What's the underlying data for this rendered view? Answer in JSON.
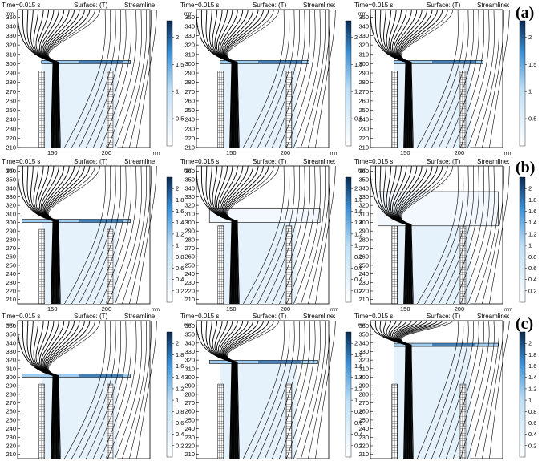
{
  "row_labels": [
    "(a)",
    "(b)",
    "(c)"
  ],
  "header": {
    "time": "Time=0.015 s",
    "surface": "Surface:  (T)",
    "streamline": "Streamline:"
  },
  "axis_units": {
    "x": "mm",
    "y": "mm"
  },
  "colors": {
    "cmap_low": "#ffffff",
    "cmap_mid": "#5aa9e6",
    "cmap_high": "#0a2a4f",
    "frame": "#000000",
    "lines": "#000000"
  },
  "chart_data": [
    {
      "type": "heatmap",
      "row": "(a)",
      "col": 1,
      "title": "",
      "xticks": [
        150,
        200
      ],
      "yticks": [
        210,
        220,
        230,
        240,
        250,
        260,
        270,
        280,
        290,
        300,
        310,
        320,
        330,
        340,
        350
      ],
      "xlim": [
        118,
        240
      ],
      "ylim": [
        210,
        358
      ],
      "colorbar": {
        "ticks": [
          0.5,
          1,
          1.5,
          2
        ],
        "range": [
          0,
          2.3
        ]
      },
      "plate": {
        "y_mm": 300,
        "x_from_mm": 140,
        "x_to_mm": 222
      },
      "legs_to_mm": 292,
      "stream_count": 28
    },
    {
      "type": "heatmap",
      "row": "(a)",
      "col": 2,
      "title": "",
      "xticks": [
        150,
        200
      ],
      "yticks": [
        210,
        220,
        230,
        240,
        250,
        260,
        270,
        280,
        290,
        300,
        310,
        320,
        330,
        340,
        350
      ],
      "xlim": [
        118,
        240
      ],
      "ylim": [
        210,
        358
      ],
      "colorbar": {
        "ticks": [
          0.5,
          1,
          1.5,
          2
        ],
        "range": [
          0,
          2.3
        ]
      },
      "plate": {
        "y_mm": 300,
        "x_from_mm": 140,
        "x_to_mm": 222
      },
      "legs_to_mm": 292,
      "stream_count": 28
    },
    {
      "type": "heatmap",
      "row": "(a)",
      "col": 3,
      "title": "",
      "xticks": [
        150,
        200
      ],
      "yticks": [
        210,
        220,
        230,
        240,
        250,
        260,
        270,
        280,
        290,
        300,
        310,
        320,
        330,
        340,
        350
      ],
      "xlim": [
        118,
        240
      ],
      "ylim": [
        210,
        358
      ],
      "colorbar": {
        "ticks": [
          0.5,
          1,
          1.5,
          2
        ],
        "range": [
          0,
          2.3
        ]
      },
      "plate": {
        "y_mm": 300,
        "x_from_mm": 140,
        "x_to_mm": 222
      },
      "legs_to_mm": 292,
      "stream_count": 28
    },
    {
      "type": "heatmap",
      "row": "(b)",
      "col": 1,
      "title": "",
      "xticks": [
        150,
        200
      ],
      "yticks": [
        210,
        220,
        230,
        240,
        250,
        260,
        270,
        280,
        290,
        300,
        310,
        320,
        330,
        340,
        350,
        360
      ],
      "xlim": [
        118,
        240
      ],
      "ylim": [
        205,
        366
      ],
      "colorbar": {
        "ticks": [
          0.2,
          0.4,
          0.6,
          0.8,
          1,
          1.2,
          1.4,
          1.6,
          1.8,
          2
        ],
        "range": [
          0,
          2.2
        ]
      },
      "plate": {
        "y_mm": 300,
        "x_from_mm": 122,
        "x_to_mm": 222
      },
      "legs_to_mm": 292,
      "stream_count": 28
    },
    {
      "type": "heatmap",
      "row": "(b)",
      "col": 2,
      "title": "",
      "xticks": [
        150,
        200
      ],
      "yticks": [
        210,
        220,
        230,
        240,
        250,
        260,
        270,
        280,
        290,
        300,
        310,
        320,
        330,
        340,
        350,
        360
      ],
      "xlim": [
        118,
        240
      ],
      "ylim": [
        205,
        366
      ],
      "colorbar": {
        "ticks": [
          0.2,
          0.4,
          0.6,
          0.8,
          1,
          1.2,
          1.4,
          1.6,
          1.8,
          2
        ],
        "range": [
          0,
          2.2
        ]
      },
      "plate": {
        "y_mm": 300,
        "x_from_mm": 130,
        "x_to_mm": 232,
        "top_mm": 316
      },
      "legs_to_mm": 296,
      "stream_count": 28
    },
    {
      "type": "heatmap",
      "row": "(b)",
      "col": 3,
      "title": "",
      "xticks": [
        150,
        200
      ],
      "yticks": [
        210,
        220,
        230,
        240,
        250,
        260,
        270,
        280,
        290,
        300,
        310,
        320,
        330,
        340,
        350,
        360
      ],
      "xlim": [
        118,
        240
      ],
      "ylim": [
        205,
        366
      ],
      "colorbar": {
        "ticks": [
          0.2,
          0.4,
          0.6,
          0.8,
          1,
          1.2,
          1.4,
          1.6,
          1.8,
          2
        ],
        "range": [
          0,
          2.2
        ]
      },
      "plate": {
        "y_mm": 296,
        "x_from_mm": 125,
        "x_to_mm": 236,
        "top_mm": 336
      },
      "legs_to_mm": 296,
      "stream_count": 28
    },
    {
      "type": "heatmap",
      "row": "(c)",
      "col": 1,
      "title": "",
      "xticks": [
        150,
        200
      ],
      "yticks": [
        210,
        220,
        230,
        240,
        250,
        260,
        270,
        280,
        290,
        300,
        310,
        320,
        330,
        340,
        350,
        360
      ],
      "xlim": [
        118,
        240
      ],
      "ylim": [
        205,
        366
      ],
      "colorbar": {
        "ticks": [
          0.2,
          0.4,
          0.6,
          0.8,
          1,
          1.2,
          1.4,
          1.6,
          1.8,
          2
        ],
        "range": [
          0,
          2.2
        ]
      },
      "plate": {
        "y_mm": 300,
        "x_from_mm": 122,
        "x_to_mm": 222
      },
      "legs_to_mm": 292,
      "stream_count": 28
    },
    {
      "type": "heatmap",
      "row": "(c)",
      "col": 2,
      "title": "",
      "xticks": [
        150,
        200
      ],
      "yticks": [
        210,
        220,
        230,
        240,
        250,
        260,
        270,
        280,
        290,
        300,
        310,
        320,
        330,
        340,
        350,
        360
      ],
      "xlim": [
        118,
        240
      ],
      "ylim": [
        205,
        366
      ],
      "colorbar": {
        "ticks": [
          0.2,
          0.4,
          0.6,
          0.8,
          1,
          1.2,
          1.4,
          1.6,
          1.8,
          2
        ],
        "range": [
          0,
          2.2
        ]
      },
      "plate": {
        "y_mm": 316,
        "x_from_mm": 130,
        "x_to_mm": 230
      },
      "legs_to_mm": 292,
      "stream_count": 28
    },
    {
      "type": "heatmap",
      "row": "(c)",
      "col": 3,
      "title": "",
      "xticks": [
        150,
        200
      ],
      "yticks": [
        210,
        220,
        230,
        240,
        250,
        260,
        270,
        280,
        290,
        300,
        310,
        320,
        330,
        340,
        350,
        360
      ],
      "xlim": [
        118,
        240
      ],
      "ylim": [
        205,
        366
      ],
      "colorbar": {
        "ticks": [
          0.2,
          0.4,
          0.6,
          0.8,
          1,
          1.2,
          1.4,
          1.6,
          1.8,
          2
        ],
        "range": [
          0,
          2.2
        ]
      },
      "plate": {
        "y_mm": 336,
        "x_from_mm": 140,
        "x_to_mm": 236
      },
      "legs_to_mm": 292,
      "stream_count": 28
    }
  ]
}
